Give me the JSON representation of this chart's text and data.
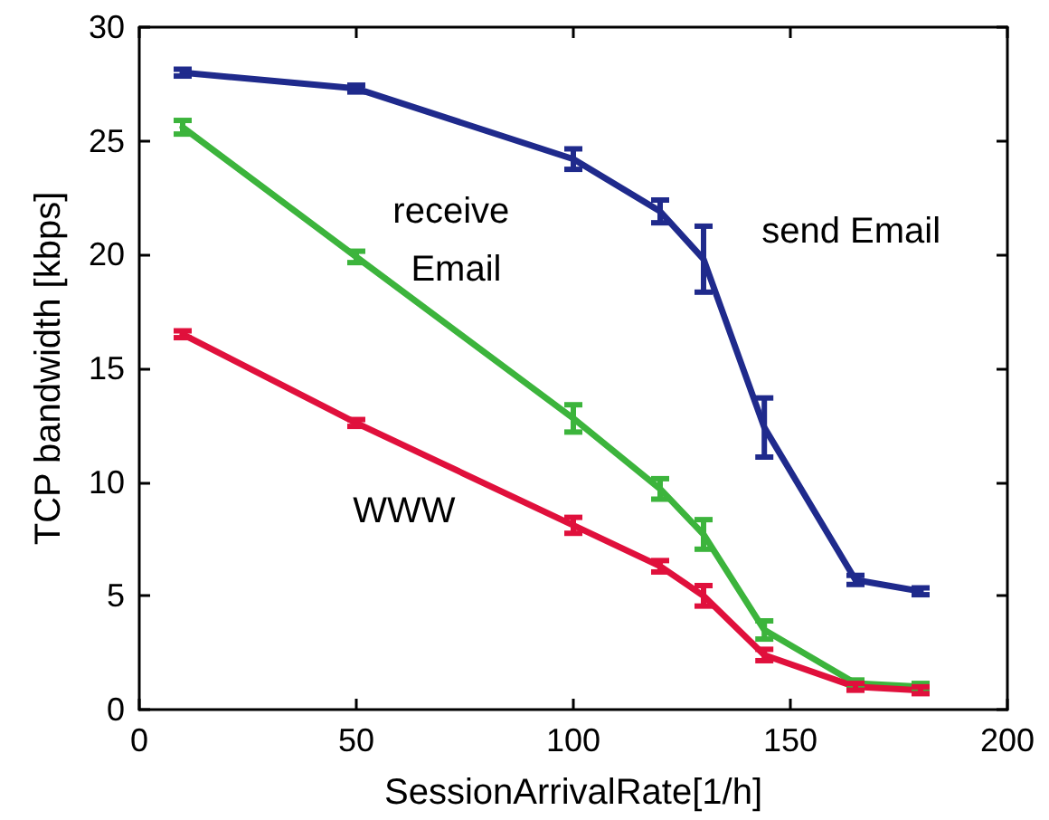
{
  "chart_data": {
    "type": "line",
    "xlabel": "SessionArrivalRate[1/h]",
    "ylabel": "TCP bandwidth [kbps]",
    "x": [
      10,
      50,
      100,
      120,
      130,
      144,
      165,
      180
    ],
    "series": [
      {
        "name": "send Email",
        "color": "#1f2a8c",
        "values": [
          28.0,
          27.3,
          24.2,
          21.9,
          19.8,
          12.4,
          5.7,
          5.2
        ],
        "errors": [
          0.15,
          0.15,
          0.45,
          0.5,
          1.45,
          1.3,
          0.2,
          0.15
        ]
      },
      {
        "name": "receive Email",
        "color": "#3cb43c",
        "values": [
          25.6,
          19.9,
          12.8,
          9.7,
          7.7,
          3.5,
          1.15,
          1.0
        ],
        "errors": [
          0.3,
          0.25,
          0.6,
          0.45,
          0.65,
          0.4,
          0.15,
          0.15
        ]
      },
      {
        "name": "WWW",
        "color": "#e0103c",
        "values": [
          16.5,
          12.6,
          8.1,
          6.3,
          5.0,
          2.4,
          1.0,
          0.85
        ],
        "errors": [
          0.15,
          0.15,
          0.35,
          0.25,
          0.45,
          0.25,
          0.15,
          0.15
        ]
      }
    ],
    "xlim": [
      0,
      200
    ],
    "xticks": [
      0,
      50,
      100,
      150,
      200
    ],
    "ylim": [
      0,
      30
    ],
    "yticks": [
      0,
      5,
      10,
      15,
      20,
      25,
      30
    ],
    "grid": false,
    "legend": false,
    "marker": "none",
    "line_style": "solid"
  }
}
